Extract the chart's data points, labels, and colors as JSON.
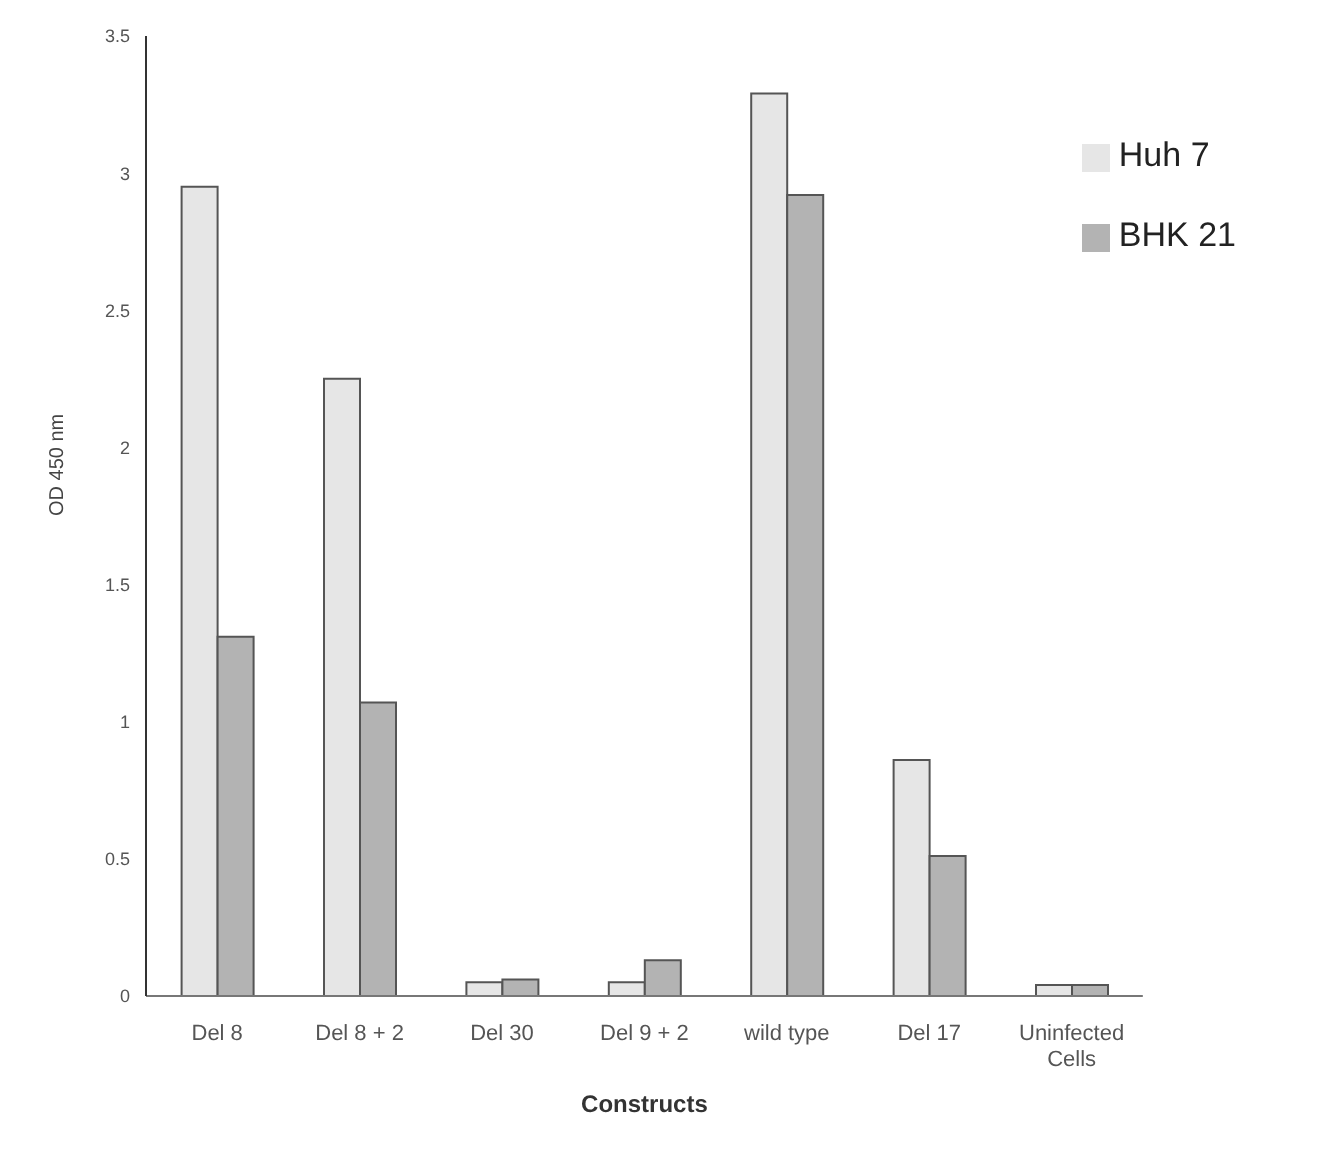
{
  "chart_data": {
    "type": "bar",
    "xlabel": "Constructs",
    "ylabel": "OD 450 nm",
    "categories": [
      "Del 8",
      "Del 8 + 2",
      "Del 30",
      "Del 9 + 2",
      "wild type",
      "Del 17",
      "Uninfected Cells"
    ],
    "series": [
      {
        "name": "Huh 7",
        "color": "#e6e6e6",
        "values": [
          2.95,
          2.25,
          0.05,
          0.05,
          3.29,
          0.86,
          0.04
        ]
      },
      {
        "name": "BHK 21",
        "color": "#b3b3b3",
        "values": [
          1.31,
          1.07,
          0.06,
          0.13,
          2.92,
          0.51,
          0.04
        ]
      }
    ],
    "ylim": [
      0,
      3.5
    ],
    "yticks": [
      0,
      0.5,
      1,
      1.5,
      2,
      2.5,
      3,
      3.5
    ],
    "grid": false,
    "legend": "top right"
  }
}
